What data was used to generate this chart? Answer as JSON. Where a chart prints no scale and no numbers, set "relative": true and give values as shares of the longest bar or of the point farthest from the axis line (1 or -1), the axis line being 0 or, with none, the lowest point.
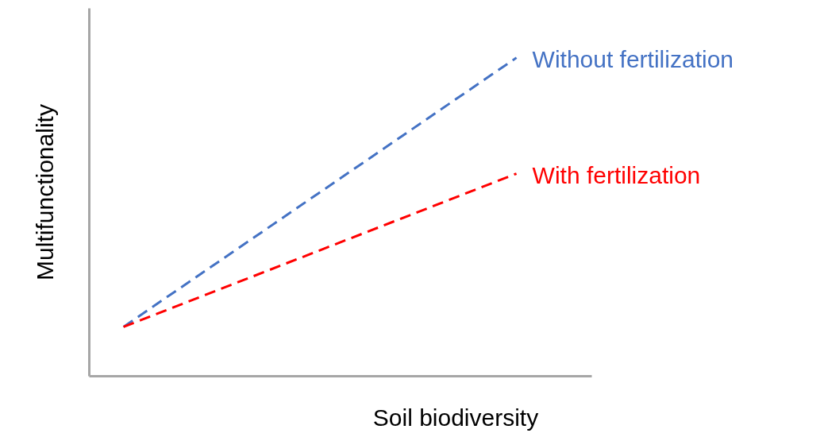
{
  "chart_data": {
    "type": "line",
    "relative": true,
    "xlabel": "Soil biodiversity",
    "ylabel": "Multifunctionality",
    "categories": [
      null,
      null
    ],
    "line_style": "dashed",
    "marker": "none",
    "series": [
      {
        "name": "Without fertilization",
        "color": "#4472c4",
        "values": [
          0.155,
          1
        ]
      },
      {
        "name": "With fertilization",
        "color": "#ff0000",
        "values": [
          0.155,
          0.636
        ]
      }
    ]
  }
}
